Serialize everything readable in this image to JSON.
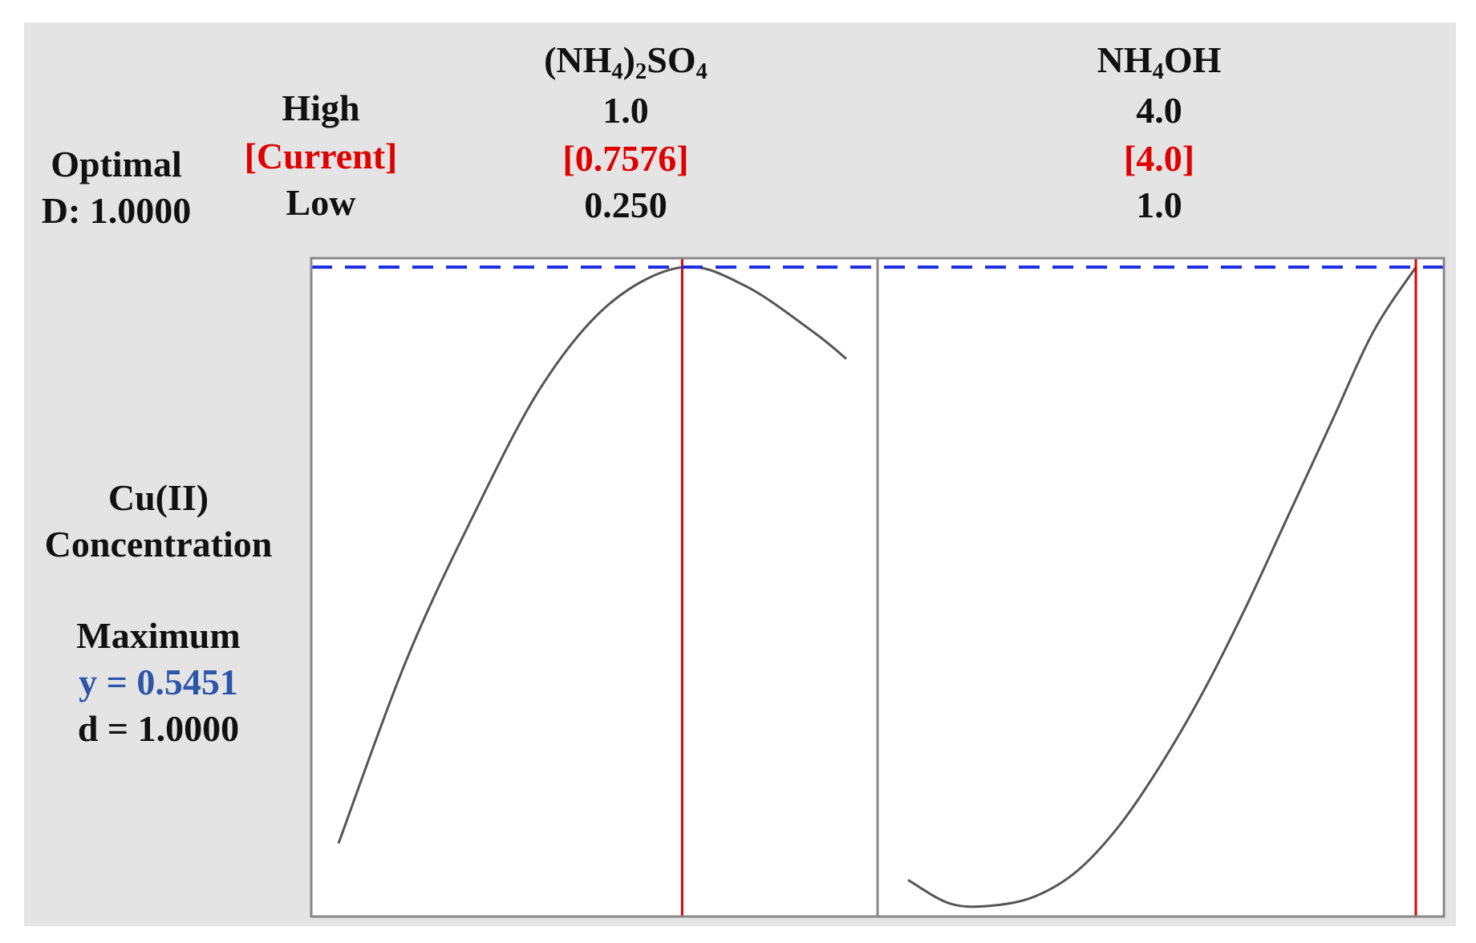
{
  "header": {
    "optimal_label": "Optimal",
    "d_label": "D: 1.0000",
    "row_labels": {
      "high": "High",
      "current": "[Current]",
      "low": "Low"
    }
  },
  "factors": [
    {
      "name_main": "(NH",
      "name_sub1": "4",
      "name_mid": ")",
      "name_sub2": "2",
      "name_end": "SO",
      "name_sub3": "4",
      "high": "1.0",
      "current": "[0.7576]",
      "low": "0.250"
    },
    {
      "name_main": "NH",
      "name_sub1": "4",
      "name_end": "OH",
      "high": "4.0",
      "current": "[4.0]",
      "low": "1.0"
    }
  ],
  "response": {
    "name_line1": "Cu(II)",
    "name_line2": "Concentration",
    "goal": "Maximum",
    "y_text": "y = 0.5451",
    "d_text": "d = 1.0000"
  },
  "colors": {
    "panel_bg": "#e4e4e4",
    "current_red": "#e00000",
    "y_blue": "#2d56a8",
    "dash_blue": "#1a2be0",
    "curve": "#555555",
    "frame": "#888888"
  },
  "chart_data": {
    "type": "line",
    "y_reference": 0.5451,
    "ylim": [
      0.19,
      0.55
    ],
    "panels": [
      {
        "factor": "(NH4)2SO4",
        "xlim": [
          0.25,
          1.0
        ],
        "current": 0.7576,
        "x": [
          0.25,
          0.35,
          0.45,
          0.55,
          0.65,
          0.7576,
          0.85,
          0.95,
          1.0
        ],
        "y": [
          0.23,
          0.33,
          0.41,
          0.48,
          0.525,
          0.5451,
          0.535,
          0.51,
          0.495
        ]
      },
      {
        "factor": "NH4OH",
        "xlim": [
          1.0,
          4.0
        ],
        "current": 4.0,
        "x": [
          1.0,
          1.25,
          1.5,
          1.75,
          2.0,
          2.25,
          2.5,
          2.75,
          3.0,
          3.25,
          3.5,
          3.75,
          4.0
        ],
        "y": [
          0.21,
          0.197,
          0.196,
          0.201,
          0.215,
          0.24,
          0.274,
          0.314,
          0.36,
          0.41,
          0.46,
          0.51,
          0.5451
        ]
      }
    ]
  }
}
